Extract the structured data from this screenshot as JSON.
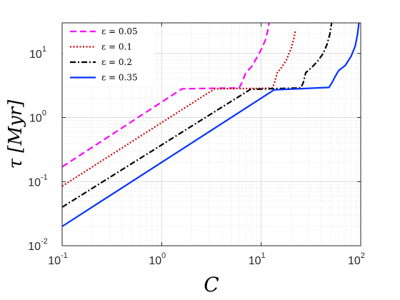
{
  "chart_data": {
    "type": "line",
    "title": "",
    "xlabel": "C",
    "ylabel": "τ [Myr]",
    "xscale": "log",
    "yscale": "log",
    "xlim": [
      0.1,
      100
    ],
    "ylim": [
      0.01,
      30
    ],
    "grid": true,
    "legend_position": "top-left",
    "x_ticks": [
      0.1,
      1,
      10,
      100
    ],
    "y_ticks": [
      0.01,
      0.1,
      1,
      10
    ],
    "x_tick_labels": [
      {
        "base": "10",
        "exp": "-1"
      },
      {
        "base": "10",
        "exp": "0"
      },
      {
        "base": "10",
        "exp": "1"
      },
      {
        "base": "10",
        "exp": "2"
      }
    ],
    "y_tick_labels": [
      {
        "base": "10",
        "exp": "-2"
      },
      {
        "base": "10",
        "exp": "-1"
      },
      {
        "base": "10",
        "exp": "0"
      },
      {
        "base": "10",
        "exp": "1"
      }
    ],
    "series": [
      {
        "name": "ε = 0.05",
        "color": "#ff00ff",
        "style": "dashed",
        "points": [
          [
            0.1,
            0.17
          ],
          [
            1.6,
            2.8
          ],
          [
            3.0,
            2.85
          ],
          [
            6.0,
            2.9
          ],
          [
            6.4,
            3.5
          ],
          [
            7.0,
            5.0
          ],
          [
            8.0,
            6.2
          ],
          [
            9.0,
            8.5
          ],
          [
            10.0,
            11.5
          ],
          [
            11.0,
            16
          ],
          [
            11.6,
            22
          ],
          [
            12.0,
            30
          ]
        ]
      },
      {
        "name": "ε = 0.1",
        "color": "#cc0000",
        "style": "dotted",
        "points": [
          [
            0.1,
            0.085
          ],
          [
            3.4,
            2.8
          ],
          [
            11.0,
            2.85
          ],
          [
            13.0,
            2.9
          ],
          [
            13.6,
            3.5
          ],
          [
            14.5,
            5.0
          ],
          [
            16.0,
            6.0
          ],
          [
            18.0,
            8.0
          ],
          [
            20.0,
            12.0
          ],
          [
            21.5,
            18
          ],
          [
            22.0,
            22
          ]
        ]
      },
      {
        "name": "ε = 0.2",
        "color": "#000000",
        "style": "dashdot",
        "points": [
          [
            0.1,
            0.04
          ],
          [
            7.8,
            2.75
          ],
          [
            25.0,
            2.9
          ],
          [
            26.5,
            3.5
          ],
          [
            28.0,
            5.0
          ],
          [
            32.0,
            6.0
          ],
          [
            37.0,
            7.6
          ],
          [
            42.0,
            10
          ],
          [
            46.0,
            14
          ],
          [
            49.0,
            20
          ],
          [
            51.0,
            30
          ]
        ]
      },
      {
        "name": "ε = 0.35",
        "color": "#0033ff",
        "style": "solid",
        "points": [
          [
            0.1,
            0.02
          ],
          [
            13.5,
            2.7
          ],
          [
            48.0,
            2.95
          ],
          [
            52.0,
            3.6
          ],
          [
            56.0,
            4.5
          ],
          [
            60.0,
            5.4
          ],
          [
            70.0,
            6.5
          ],
          [
            80.0,
            9.0
          ],
          [
            88.0,
            13
          ],
          [
            93.0,
            20
          ],
          [
            96.0,
            30
          ]
        ]
      }
    ]
  }
}
